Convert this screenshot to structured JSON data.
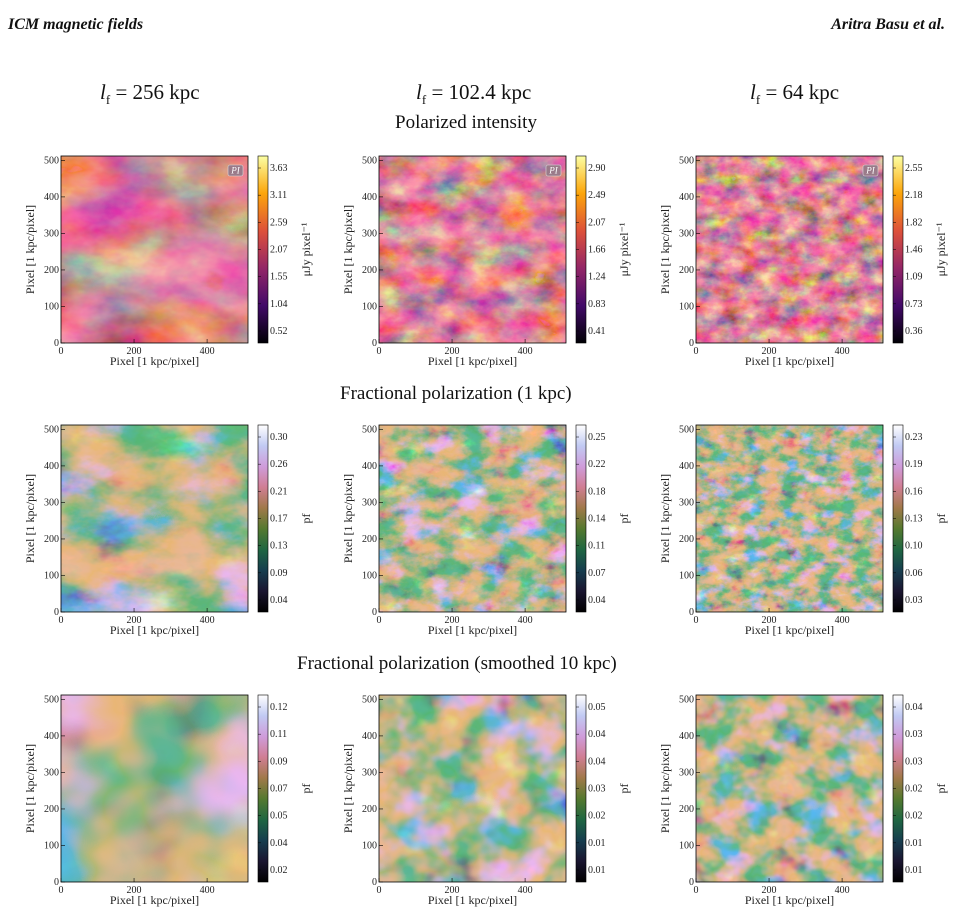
{
  "header": {
    "left": "ICM magnetic fields",
    "right": "Aritra Basu et al."
  },
  "columns": [
    {
      "symbol": "l",
      "subscript": "f",
      "value": "= 256 kpc"
    },
    {
      "symbol": "l",
      "subscript": "f",
      "value": "= 102.4 kpc"
    },
    {
      "symbol": "l",
      "subscript": "f",
      "value": "= 64 kpc"
    }
  ],
  "rows": [
    {
      "title": "Polarized intensity",
      "cbar_label": "μJy pixel⁻¹",
      "colormap": "inferno",
      "badge": "PI",
      "ticks": [
        [
          "3.63",
          "3.11",
          "2.59",
          "2.07",
          "1.55",
          "1.04",
          "0.52"
        ],
        [
          "2.90",
          "2.49",
          "2.07",
          "1.66",
          "1.24",
          "0.83",
          "0.41"
        ],
        [
          "2.55",
          "2.18",
          "1.82",
          "1.46",
          "1.09",
          "0.73",
          "0.36"
        ]
      ]
    },
    {
      "title": "Fractional polarization (1 kpc)",
      "cbar_label": "pf",
      "colormap": "cubehelix",
      "badge": "",
      "ticks": [
        [
          "0.30",
          "0.26",
          "0.21",
          "0.17",
          "0.13",
          "0.09",
          "0.04"
        ],
        [
          "0.25",
          "0.22",
          "0.18",
          "0.14",
          "0.11",
          "0.07",
          "0.04"
        ],
        [
          "0.23",
          "0.19",
          "0.16",
          "0.13",
          "0.10",
          "0.06",
          "0.03"
        ]
      ]
    },
    {
      "title": "Fractional polarization (smoothed 10 kpc)",
      "cbar_label": "pf",
      "colormap": "cubehelix",
      "badge": "",
      "ticks": [
        [
          "0.12",
          "0.11",
          "0.09",
          "0.07",
          "0.05",
          "0.04",
          "0.02"
        ],
        [
          "0.05",
          "0.04",
          "0.04",
          "0.03",
          "0.02",
          "0.01",
          "0.01"
        ],
        [
          "0.04",
          "0.03",
          "0.03",
          "0.02",
          "0.02",
          "0.01",
          "0.01"
        ]
      ]
    }
  ],
  "axes": {
    "xlabel": "Pixel [1 kpc/pixel]",
    "ylabel": "Pixel [1 kpc/pixel]",
    "xticks": [
      "0",
      "200",
      "400"
    ],
    "yticks": [
      "0",
      "100",
      "200",
      "300",
      "400",
      "500"
    ]
  },
  "colors": {
    "inferno": [
      "#000004",
      "#420a68",
      "#932667",
      "#dd513a",
      "#fca50a",
      "#fcffa4"
    ],
    "cubehelix": [
      "#000000",
      "#1a1530",
      "#163d4e",
      "#1f6642",
      "#54792f",
      "#a07949",
      "#d07e93",
      "#cf9cda",
      "#c1caf3",
      "#ffffff"
    ]
  }
}
